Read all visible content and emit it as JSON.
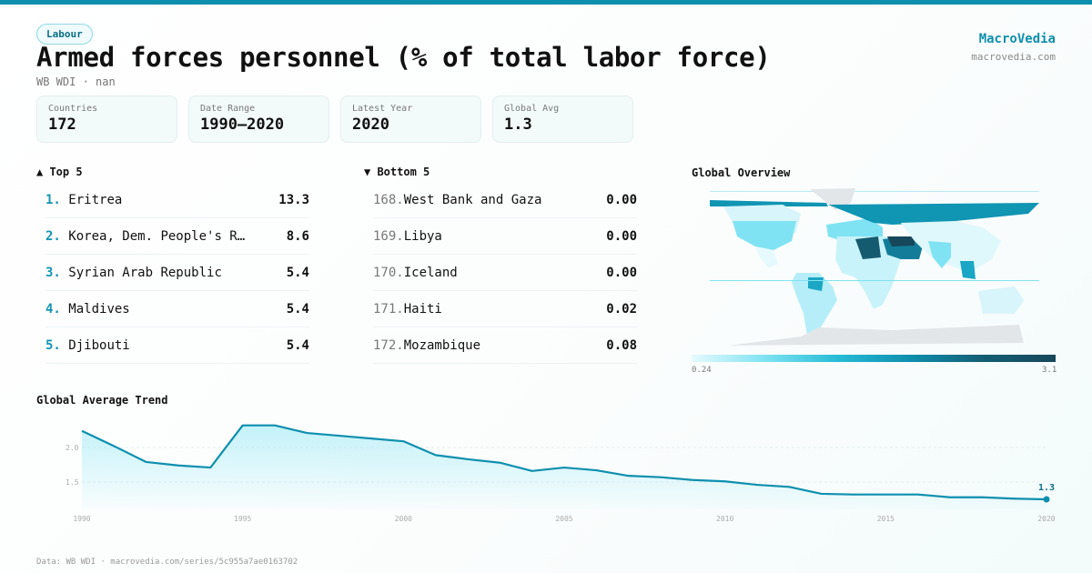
{
  "header": {
    "tag": "Labour",
    "title": "Armed forces personnel (% of total labor force)",
    "subtitle": "WB WDI · nan",
    "brand": "MacroVedia",
    "brand_url": "macrovedia.com"
  },
  "stats": [
    {
      "label": "Countries",
      "value": "172"
    },
    {
      "label": "Date Range",
      "value": "1990–2020"
    },
    {
      "label": "Latest Year",
      "value": "2020"
    },
    {
      "label": "Global Avg",
      "value": "1.3"
    }
  ],
  "top": {
    "title": "▲ Top 5",
    "items": [
      {
        "rank": "1.",
        "name": "Eritrea",
        "value": "13.3"
      },
      {
        "rank": "2.",
        "name": "Korea, Dem. People's R…",
        "value": "8.6"
      },
      {
        "rank": "3.",
        "name": "Syrian Arab Republic",
        "value": "5.4"
      },
      {
        "rank": "4.",
        "name": "Maldives",
        "value": "5.4"
      },
      {
        "rank": "5.",
        "name": "Djibouti",
        "value": "5.4"
      }
    ]
  },
  "bottom": {
    "title": "▼ Bottom 5",
    "items": [
      {
        "rank": "168.",
        "name": "West Bank and Gaza",
        "value": "0.00"
      },
      {
        "rank": "169.",
        "name": "Libya",
        "value": "0.00"
      },
      {
        "rank": "170.",
        "name": "Iceland",
        "value": "0.00"
      },
      {
        "rank": "171.",
        "name": "Haiti",
        "value": "0.02"
      },
      {
        "rank": "172.",
        "name": "Mozambique",
        "value": "0.08"
      }
    ]
  },
  "map": {
    "title": "Global Overview",
    "legend_min": "0.24",
    "legend_max": "3.1"
  },
  "chart_data": {
    "type": "area",
    "title": "Global Average Trend",
    "x": [
      1990,
      1991,
      1992,
      1993,
      1994,
      1995,
      1996,
      1997,
      1998,
      1999,
      2000,
      2001,
      2002,
      2003,
      2004,
      2005,
      2006,
      2007,
      2008,
      2009,
      2010,
      2011,
      2012,
      2013,
      2014,
      2015,
      2016,
      2017,
      2018,
      2019,
      2020
    ],
    "values": [
      2.24,
      2.02,
      1.79,
      1.74,
      1.71,
      2.32,
      2.32,
      2.21,
      2.17,
      2.13,
      2.09,
      1.89,
      1.83,
      1.78,
      1.66,
      1.71,
      1.67,
      1.59,
      1.57,
      1.53,
      1.51,
      1.46,
      1.43,
      1.33,
      1.32,
      1.32,
      1.32,
      1.28,
      1.28,
      1.26,
      1.25
    ],
    "x_ticks": [
      "1990",
      "1995",
      "2000",
      "2005",
      "2010",
      "2015",
      "2020"
    ],
    "y_ticks": [
      "1.5",
      "2.0"
    ],
    "last_label": "1.3",
    "color": "#0e8fae"
  },
  "footer": "Data: WB WDI · macrovedia.com/series/5c955a7ae0163702"
}
